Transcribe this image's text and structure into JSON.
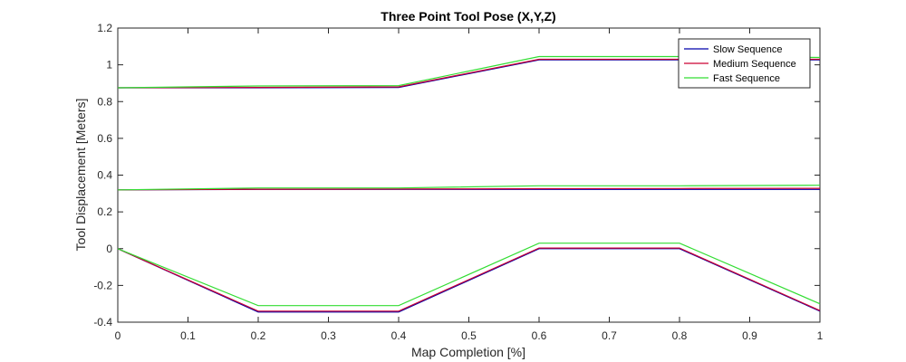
{
  "chart_data": {
    "type": "line",
    "title": "Three Point Tool Pose (X,Y,Z)",
    "xlabel": "Map Completion [%]",
    "ylabel": "Tool Displacement [Meters]",
    "xlim": [
      0,
      1
    ],
    "ylim": [
      -0.4,
      1.2
    ],
    "xticks": [
      0,
      0.1,
      0.2,
      0.3,
      0.4,
      0.5,
      0.6,
      0.7,
      0.8,
      0.9,
      1
    ],
    "xtick_labels": [
      "0",
      "0.1",
      "0.2",
      "0.3",
      "0.4",
      "0.5",
      "0.6",
      "0.7",
      "0.8",
      "0.9",
      "1"
    ],
    "yticks": [
      -0.4,
      -0.2,
      0,
      0.2,
      0.4,
      0.6,
      0.8,
      1,
      1.2
    ],
    "ytick_labels": [
      "-0.4",
      "-0.2",
      "0",
      "0.2",
      "0.4",
      "0.6",
      "0.8",
      "1",
      "1.2"
    ],
    "grid": false,
    "legend_position": "top-right",
    "series": [
      {
        "name": "Slow Sequence",
        "color": "#0000aa",
        "lines": [
          {
            "x": [
              0,
              0.2,
              0.4,
              0.6,
              0.8,
              1
            ],
            "y": [
              0.875,
              0.875,
              0.877,
              1.027,
              1.027,
              1.027
            ]
          },
          {
            "x": [
              0,
              0.2,
              0.4,
              0.6,
              0.8,
              1
            ],
            "y": [
              0.32,
              0.322,
              0.322,
              0.322,
              0.322,
              0.322
            ]
          },
          {
            "x": [
              0,
              0.2,
              0.4,
              0.6,
              0.8,
              1
            ],
            "y": [
              0,
              -0.345,
              -0.345,
              0,
              0,
              -0.34
            ]
          }
        ]
      },
      {
        "name": "Medium Sequence",
        "color": "#cc0033",
        "lines": [
          {
            "x": [
              0,
              0.2,
              0.4,
              0.6,
              0.8,
              1
            ],
            "y": [
              0.875,
              0.877,
              0.88,
              1.03,
              1.03,
              1.03
            ]
          },
          {
            "x": [
              0,
              0.2,
              0.4,
              0.6,
              0.8,
              1
            ],
            "y": [
              0.32,
              0.323,
              0.324,
              0.326,
              0.327,
              0.328
            ]
          },
          {
            "x": [
              0,
              0.2,
              0.4,
              0.6,
              0.8,
              1
            ],
            "y": [
              0,
              -0.34,
              -0.34,
              0.003,
              0.003,
              -0.337
            ]
          }
        ]
      },
      {
        "name": "Fast Sequence",
        "color": "#33dd33",
        "lines": [
          {
            "x": [
              0,
              0.2,
              0.4,
              0.6,
              0.8,
              1
            ],
            "y": [
              0.875,
              0.885,
              0.887,
              1.045,
              1.045,
              1.04
            ]
          },
          {
            "x": [
              0,
              0.2,
              0.4,
              0.6,
              0.8,
              1
            ],
            "y": [
              0.32,
              0.33,
              0.33,
              0.342,
              0.342,
              0.345
            ]
          },
          {
            "x": [
              0,
              0.2,
              0.4,
              0.6,
              0.8,
              1
            ],
            "y": [
              0,
              -0.31,
              -0.31,
              0.03,
              0.03,
              -0.3
            ]
          }
        ]
      }
    ]
  }
}
